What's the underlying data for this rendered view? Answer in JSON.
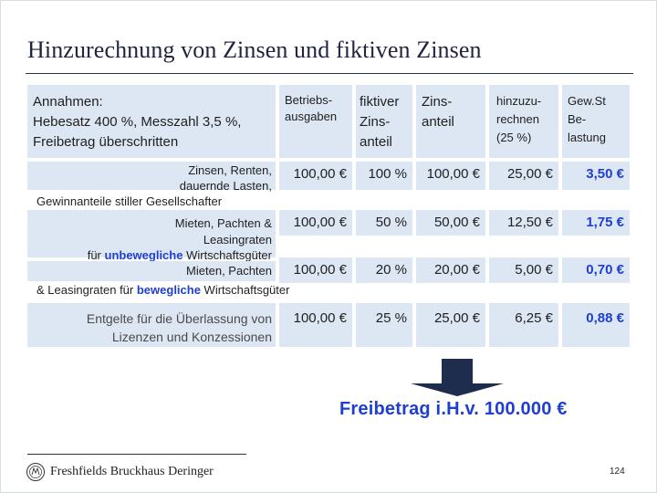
{
  "title": "Hinzurechnung von Zinsen und fiktiven Zinsen",
  "assumptions": [
    "Annahmen:",
    "Hebesatz 400 %, Messzahl 3,5 %,",
    "Freibetrag überschritten"
  ],
  "columns": [
    [
      "Betriebs-",
      "ausgaben"
    ],
    [
      "fiktiver",
      "Zins-",
      "anteil"
    ],
    [
      "Zins-",
      "anteil"
    ],
    [
      "hinzuzu-",
      "rechnen",
      "(25 %)"
    ],
    [
      "Gew.St",
      "Be-",
      "lastung"
    ]
  ],
  "rows": [
    {
      "label": [
        "Zinsen, Renten,",
        "dauernde Lasten,"
      ],
      "label_extra": "Gewinnanteile stiller Gesellschafter",
      "values": [
        "100,00 €",
        "100 %",
        "100,00 €",
        "25,00 €",
        "3,50 €"
      ]
    },
    {
      "label": [
        "Mieten, Pachten &",
        "Leasingraten"
      ],
      "label_extra_pre": "für ",
      "label_extra_em": "unbewegliche",
      "label_extra_post": " Wirtschaftsgüter",
      "values": [
        "100,00 €",
        "50 %",
        "50,00 €",
        "12,50 €",
        "1,75 €"
      ]
    },
    {
      "label": [
        "Mieten, Pachten"
      ],
      "label_extra_pre": "& Leasingraten für ",
      "label_extra_em": "bewegliche",
      "label_extra_post": " Wirtschaftsgüter",
      "values": [
        "100,00 €",
        "20 %",
        "20,00 €",
        "5,00 €",
        "0,70 €"
      ]
    },
    {
      "label": [
        "Entgelte für die Überlassung von",
        "Lizenzen und Konzessionen"
      ],
      "values": [
        "100,00 €",
        "25 %",
        "25,00 €",
        "6,25 €",
        "0,88 €"
      ]
    }
  ],
  "freibetrag": "Freibetrag i.H.v. 100.000 €",
  "footer": {
    "brand": "Freshfields Bruckhaus Deringer",
    "page": "124"
  },
  "colors": {
    "cell_bg": "#dde6f3",
    "accent_blue": "#1f3fd1",
    "title": "#1f2440"
  }
}
